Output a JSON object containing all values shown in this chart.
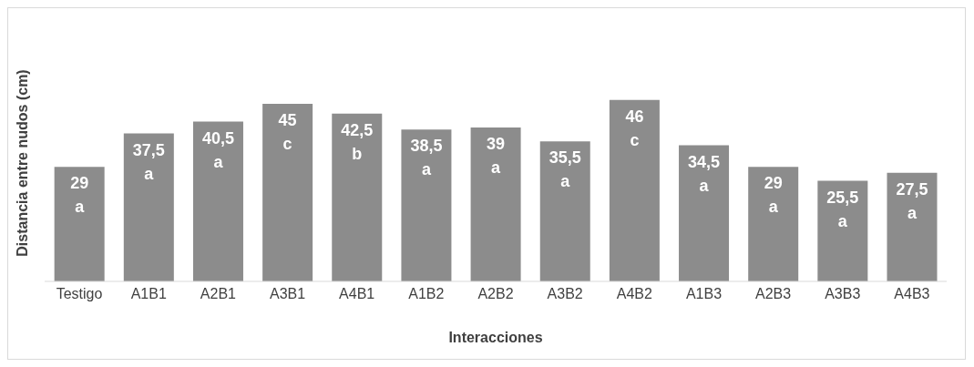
{
  "chart_data": {
    "type": "bar",
    "xlabel": "Interacciones",
    "ylabel": "Distancia entre nudos (cm)",
    "categories": [
      "Testigo",
      "A1B1",
      "A2B1",
      "A3B1",
      "A4B1",
      "A1B2",
      "A2B2",
      "A3B2",
      "A4B2",
      "A1B3",
      "A2B3",
      "A3B3",
      "A4B3"
    ],
    "values": [
      29,
      37.5,
      40.5,
      45,
      42.5,
      38.5,
      39,
      35.5,
      46,
      34.5,
      29,
      25.5,
      27.5
    ],
    "value_labels": [
      "29\na",
      "37,5\na",
      "40,5\na",
      "45\nc",
      "42,5\nb",
      "38,5\na",
      "39\na",
      "35,5\na",
      "46\nc",
      "34,5\na",
      "29\na",
      "25,5\na",
      "27,5\na"
    ],
    "color": "#8c8c8c",
    "grid": false,
    "legend": false
  }
}
